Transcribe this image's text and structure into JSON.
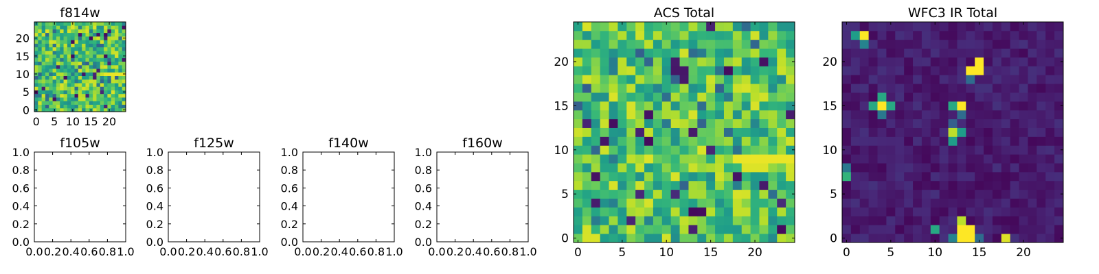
{
  "colors": {
    "viridis_low": "#440154",
    "viridis_high": "#fde725",
    "axes_bg": "#ffffff",
    "frame": "#000000"
  },
  "chart_data": [
    {
      "id": "f814w",
      "type": "heatmap",
      "title": "f814w",
      "shape": [
        25,
        25
      ],
      "xlim": [
        -0.5,
        24.5
      ],
      "ylim": [
        -0.5,
        24.5
      ],
      "xticks": [
        0,
        5,
        10,
        15,
        20
      ],
      "yticks": [
        0,
        5,
        10,
        15,
        20
      ],
      "seed": 814,
      "mode": "acs",
      "value_range": [
        0,
        1
      ]
    },
    {
      "id": "f105w",
      "type": "empty",
      "title": "f105w",
      "xlim": [
        0,
        1
      ],
      "ylim": [
        0,
        1
      ],
      "xticks": [
        "0.0",
        "0.2",
        "0.4",
        "0.6",
        "0.8",
        "1.0"
      ],
      "yticks": [
        "0.0",
        "0.2",
        "0.4",
        "0.6",
        "0.8",
        "1.0"
      ]
    },
    {
      "id": "f125w",
      "type": "empty",
      "title": "f125w",
      "xlim": [
        0,
        1
      ],
      "ylim": [
        0,
        1
      ],
      "xticks": [
        "0.0",
        "0.2",
        "0.4",
        "0.6",
        "0.8",
        "1.0"
      ],
      "yticks": [
        "0.0",
        "0.2",
        "0.4",
        "0.6",
        "0.8",
        "1.0"
      ]
    },
    {
      "id": "f140w",
      "type": "empty",
      "title": "f140w",
      "xlim": [
        0,
        1
      ],
      "ylim": [
        0,
        1
      ],
      "xticks": [
        "0.0",
        "0.2",
        "0.4",
        "0.6",
        "0.8",
        "1.0"
      ],
      "yticks": [
        "0.0",
        "0.2",
        "0.4",
        "0.6",
        "0.8",
        "1.0"
      ]
    },
    {
      "id": "f160w",
      "type": "empty",
      "title": "f160w",
      "xlim": [
        0,
        1
      ],
      "ylim": [
        0,
        1
      ],
      "xticks": [
        "0.0",
        "0.2",
        "0.4",
        "0.6",
        "0.8",
        "1.0"
      ],
      "yticks": [
        "0.0",
        "0.2",
        "0.4",
        "0.6",
        "0.8",
        "1.0"
      ]
    },
    {
      "id": "acs_total",
      "type": "heatmap",
      "title": "ACS Total",
      "shape": [
        25,
        25
      ],
      "xlim": [
        -0.5,
        24.5
      ],
      "ylim": [
        -0.5,
        24.5
      ],
      "xticks": [
        0,
        5,
        10,
        15,
        20
      ],
      "yticks": [
        0,
        5,
        10,
        15,
        20
      ],
      "seed": 8140,
      "mode": "acs",
      "value_range": [
        0,
        1
      ]
    },
    {
      "id": "wfc3_ir_total",
      "type": "heatmap",
      "title": "WFC3 IR Total",
      "shape": [
        25,
        25
      ],
      "xlim": [
        -0.5,
        24.5
      ],
      "ylim": [
        -0.5,
        24.5
      ],
      "xticks": [
        0,
        5,
        10,
        15,
        20
      ],
      "yticks": [
        0,
        5,
        10,
        15,
        20
      ],
      "seed": 1600,
      "mode": "ir",
      "value_range": [
        0,
        1
      ],
      "hot_pixels": [
        {
          "x": 2,
          "y": 23,
          "v": 1.0
        },
        {
          "x": 1,
          "y": 23,
          "v": 0.55
        },
        {
          "x": 2,
          "y": 22,
          "v": 0.45
        },
        {
          "x": 14,
          "y": 19,
          "v": 1.0
        },
        {
          "x": 15,
          "y": 19,
          "v": 1.0
        },
        {
          "x": 15,
          "y": 20,
          "v": 1.0
        },
        {
          "x": 14,
          "y": 18,
          "v": 0.35
        },
        {
          "x": 4,
          "y": 15,
          "v": 1.0
        },
        {
          "x": 3,
          "y": 15,
          "v": 0.6
        },
        {
          "x": 5,
          "y": 15,
          "v": 0.6
        },
        {
          "x": 4,
          "y": 16,
          "v": 0.6
        },
        {
          "x": 4,
          "y": 14,
          "v": 0.4
        },
        {
          "x": 13,
          "y": 15,
          "v": 1.0
        },
        {
          "x": 12,
          "y": 15,
          "v": 0.6
        },
        {
          "x": 13,
          "y": 14,
          "v": 0.35
        },
        {
          "x": 12,
          "y": 12,
          "v": 0.9
        },
        {
          "x": 13,
          "y": 12,
          "v": 0.55
        },
        {
          "x": 12,
          "y": 11,
          "v": 0.55
        },
        {
          "x": 12,
          "y": 13,
          "v": 0.3
        },
        {
          "x": 0,
          "y": 7,
          "v": 0.65
        },
        {
          "x": 0,
          "y": 8,
          "v": 0.4
        },
        {
          "x": 13,
          "y": 0,
          "v": 1.0
        },
        {
          "x": 14,
          "y": 0,
          "v": 1.0
        },
        {
          "x": 13,
          "y": 1,
          "v": 1.0
        },
        {
          "x": 14,
          "y": 1,
          "v": 1.0
        },
        {
          "x": 13,
          "y": 2,
          "v": 0.9
        },
        {
          "x": 12,
          "y": 0,
          "v": 0.45
        },
        {
          "x": 10,
          "y": 1,
          "v": 0.6
        },
        {
          "x": 18,
          "y": 0,
          "v": 0.95
        },
        {
          "x": 15,
          "y": 0,
          "v": 0.35
        }
      ]
    }
  ]
}
